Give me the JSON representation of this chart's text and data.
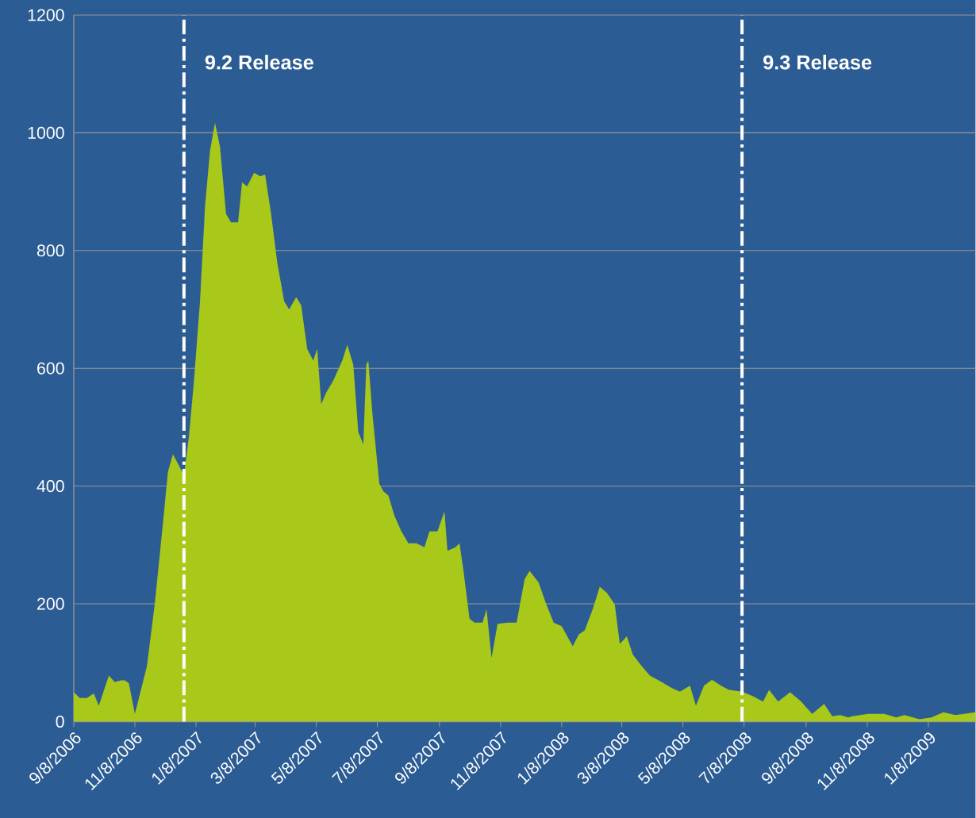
{
  "chart_data": {
    "type": "area",
    "grid": "y",
    "xlim": [
      "2006-09-08",
      "2009-02-24"
    ],
    "xticks": [
      {
        "value": "2006-09-08",
        "label": "9/8/2006"
      },
      {
        "value": "2006-11-08",
        "label": "11/8/2006"
      },
      {
        "value": "2007-01-08",
        "label": "1/8/2007"
      },
      {
        "value": "2007-03-08",
        "label": "3/8/2007"
      },
      {
        "value": "2007-05-08",
        "label": "5/8/2007"
      },
      {
        "value": "2007-07-08",
        "label": "7/8/2007"
      },
      {
        "value": "2007-09-08",
        "label": "9/8/2007"
      },
      {
        "value": "2007-11-08",
        "label": "11/8/2007"
      },
      {
        "value": "2008-01-08",
        "label": "1/8/2008"
      },
      {
        "value": "2008-03-08",
        "label": "3/8/2008"
      },
      {
        "value": "2008-05-08",
        "label": "5/8/2008"
      },
      {
        "value": "2008-07-08",
        "label": "7/8/2008"
      },
      {
        "value": "2008-09-08",
        "label": "9/8/2008"
      },
      {
        "value": "2008-11-08",
        "label": "11/8/2008"
      },
      {
        "value": "2009-01-08",
        "label": "1/8/2009"
      }
    ],
    "ylim": [
      0,
      1200
    ],
    "yticks": [
      0,
      200,
      400,
      600,
      800,
      1000,
      1200
    ],
    "ref_lines": [
      {
        "axis": "x",
        "value": "2006-12-27",
        "label": "9.2 Release",
        "color": "#ffffff",
        "line_style": "dashdot"
      },
      {
        "axis": "x",
        "value": "2008-07-06",
        "label": "9.3 Release",
        "color": "#ffffff",
        "line_style": "dashdot"
      }
    ],
    "series": [
      {
        "color": "#a8c81a",
        "x": [
          "2006-09-08",
          "2006-09-14",
          "2006-09-21",
          "2006-09-28",
          "2006-10-03",
          "2006-10-13",
          "2006-10-19",
          "2006-10-25",
          "2006-10-29",
          "2006-11-02",
          "2006-11-08",
          "2006-11-12",
          "2006-11-20",
          "2006-11-28",
          "2006-12-06",
          "2006-12-11",
          "2006-12-16",
          "2006-12-21",
          "2006-12-27",
          "2007-01-01",
          "2007-01-06",
          "2007-01-12",
          "2007-01-17",
          "2007-01-22",
          "2007-01-27",
          "2007-02-01",
          "2007-02-07",
          "2007-02-12",
          "2007-02-19",
          "2007-02-23",
          "2007-02-28",
          "2007-03-07",
          "2007-03-13",
          "2007-03-18",
          "2007-03-24",
          "2007-03-30",
          "2007-04-06",
          "2007-04-11",
          "2007-04-18",
          "2007-04-23",
          "2007-04-29",
          "2007-05-05",
          "2007-05-09",
          "2007-05-13",
          "2007-05-18",
          "2007-05-25",
          "2007-06-03",
          "2007-06-08",
          "2007-06-14",
          "2007-06-19",
          "2007-06-24",
          "2007-06-27",
          "2007-06-29",
          "2007-07-03",
          "2007-07-10",
          "2007-07-14",
          "2007-07-19",
          "2007-07-25",
          "2007-08-01",
          "2007-08-08",
          "2007-08-16",
          "2007-08-24",
          "2007-08-29",
          "2007-09-06",
          "2007-09-13",
          "2007-09-16",
          "2007-09-24",
          "2007-09-28",
          "2007-10-02",
          "2007-10-08",
          "2007-10-13",
          "2007-10-21",
          "2007-10-25",
          "2007-10-30",
          "2007-11-05",
          "2007-11-15",
          "2007-11-24",
          "2007-12-02",
          "2007-12-07",
          "2007-12-16",
          "2007-12-23",
          "2007-12-31",
          "2008-01-08",
          "2008-01-19",
          "2008-01-25",
          "2008-01-31",
          "2008-02-08",
          "2008-02-15",
          "2008-02-22",
          "2008-03-01",
          "2008-03-06",
          "2008-03-13",
          "2008-03-19",
          "2008-03-28",
          "2008-04-05",
          "2008-04-17",
          "2008-04-27",
          "2008-05-05",
          "2008-05-15",
          "2008-05-21",
          "2008-05-29",
          "2008-06-06",
          "2008-06-15",
          "2008-06-23",
          "2008-07-06",
          "2008-07-17",
          "2008-07-27",
          "2008-08-02",
          "2008-08-11",
          "2008-08-23",
          "2008-09-03",
          "2008-09-14",
          "2008-09-26",
          "2008-10-04",
          "2008-10-12",
          "2008-10-20",
          "2008-10-24",
          "2008-11-09",
          "2008-11-25",
          "2008-12-07",
          "2008-12-15",
          "2008-12-30",
          "2009-01-11",
          "2009-01-23",
          "2009-02-04",
          "2009-02-24"
        ],
        "values": [
          50,
          40,
          40,
          48,
          27,
          78,
          67,
          70,
          70,
          65,
          13,
          40,
          94,
          202,
          337,
          424,
          454,
          438,
          418,
          485,
          579,
          714,
          875,
          970,
          1017,
          976,
          862,
          848,
          848,
          916,
          909,
          932,
          926,
          929,
          862,
          781,
          714,
          700,
          721,
          707,
          633,
          613,
          633,
          539,
          559,
          579,
          613,
          640,
          606,
          492,
          471,
          606,
          613,
          525,
          404,
          391,
          384,
          350,
          323,
          303,
          303,
          296,
          323,
          323,
          357,
          290,
          296,
          303,
          256,
          175,
          168,
          168,
          191,
          108,
          166,
          168,
          168,
          242,
          256,
          236,
          202,
          168,
          162,
          128,
          148,
          155,
          191,
          229,
          219,
          199,
          132,
          145,
          114,
          94,
          78,
          67,
          57,
          51,
          61,
          27,
          61,
          71,
          61,
          54,
          51,
          43,
          34,
          54,
          34,
          50,
          34,
          13,
          30,
          9,
          11,
          7,
          9,
          13,
          13,
          7,
          11,
          4,
          7,
          16,
          11,
          16
        ]
      }
    ]
  }
}
